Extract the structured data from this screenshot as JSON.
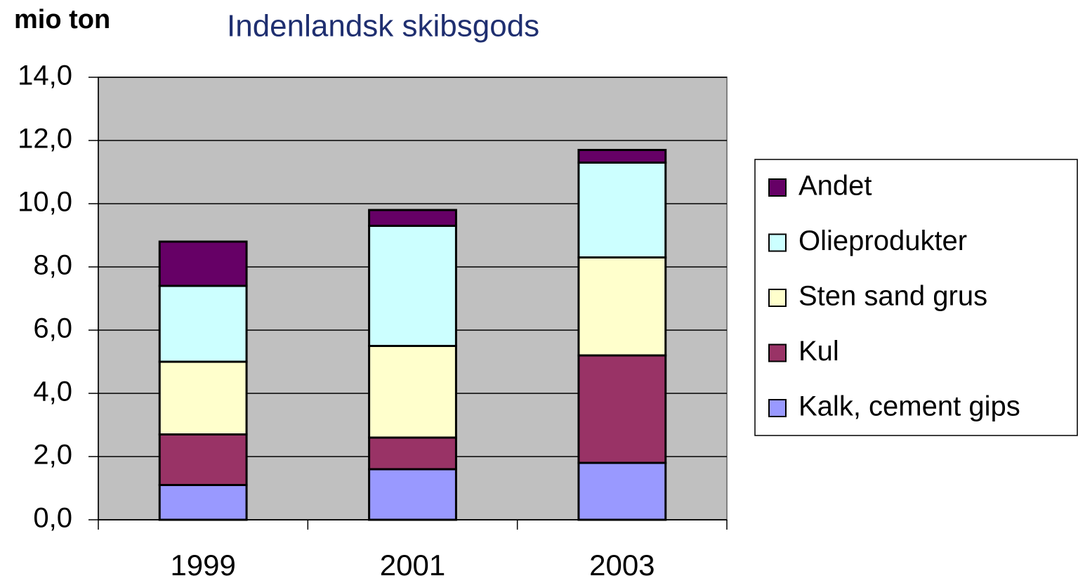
{
  "chart_data": {
    "type": "stacked_bar",
    "title": "Indenlandsk skibsgods",
    "y_label": "mio ton",
    "categories": [
      "1999",
      "2001",
      "2003"
    ],
    "series": [
      {
        "name": "Kalk, cement gips",
        "color": "#9999ff",
        "values": [
          1.1,
          1.6,
          1.8
        ]
      },
      {
        "name": "Kul",
        "color": "#993366",
        "values": [
          1.6,
          1.0,
          3.4
        ]
      },
      {
        "name": "Sten sand grus",
        "color": "#ffffcc",
        "values": [
          2.3,
          2.9,
          3.1
        ]
      },
      {
        "name": "Olieprodukter",
        "color": "#ccffff",
        "values": [
          2.4,
          3.8,
          3.0
        ]
      },
      {
        "name": "Andet",
        "color": "#660066",
        "values": [
          1.4,
          0.5,
          0.4
        ]
      }
    ],
    "ylim": [
      0,
      14
    ],
    "yticks": [
      {
        "value": 0,
        "label": "0,0"
      },
      {
        "value": 2,
        "label": "2,0"
      },
      {
        "value": 4,
        "label": "4,0"
      },
      {
        "value": 6,
        "label": "6,0"
      },
      {
        "value": 8,
        "label": "8,0"
      },
      {
        "value": 10,
        "label": "10,0"
      },
      {
        "value": 12,
        "label": "12,0"
      },
      {
        "value": 14,
        "label": "14,0"
      }
    ],
    "grid": true,
    "legend": "right",
    "plot_background": "#c0c0c0"
  }
}
